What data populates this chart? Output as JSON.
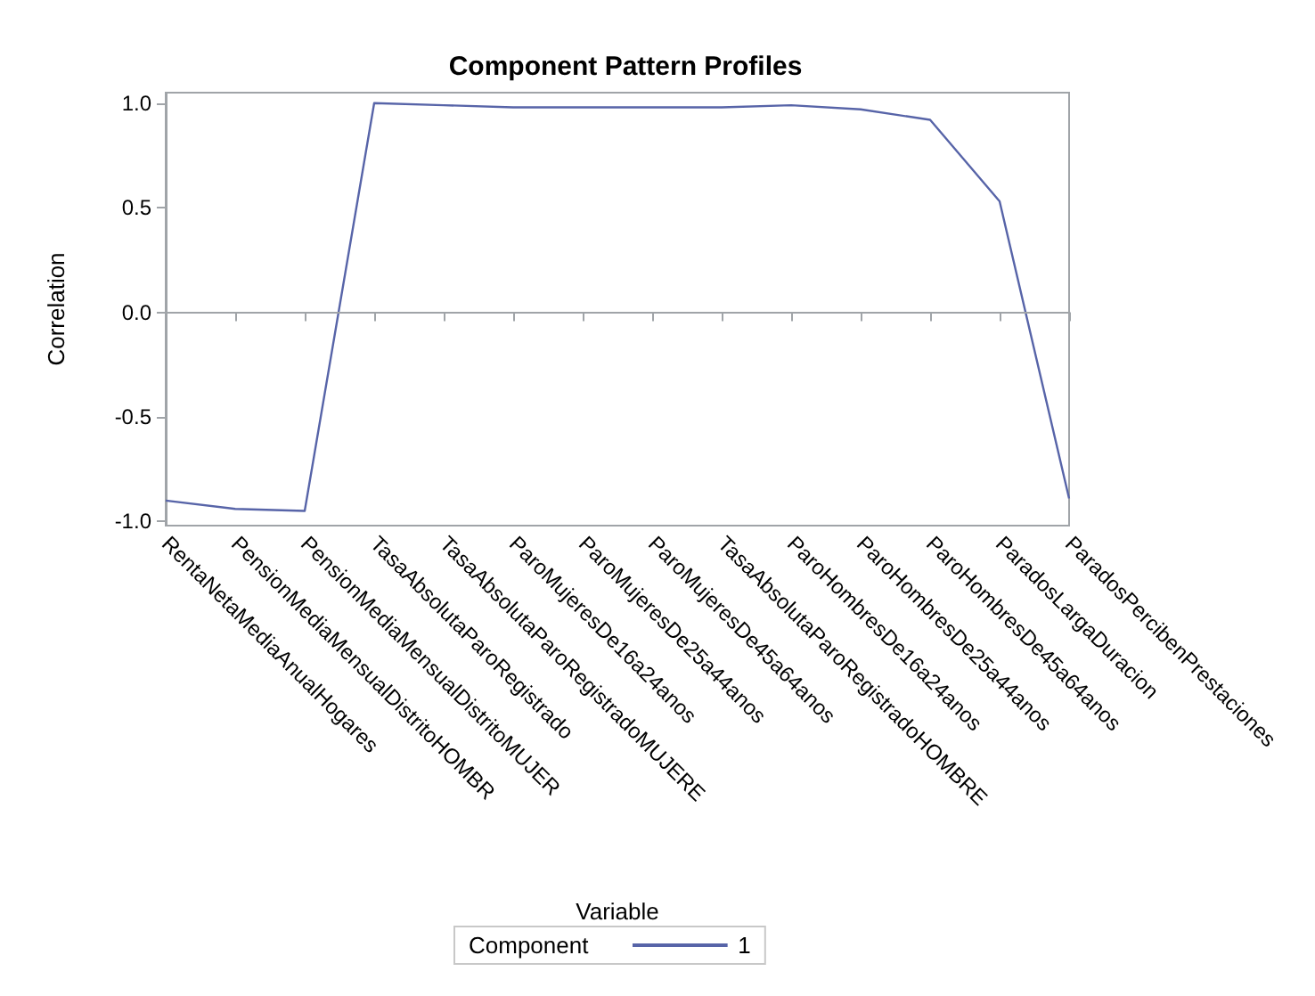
{
  "chart_data": {
    "type": "line",
    "title": "Component Pattern Profiles",
    "xlabel": "Variable",
    "ylabel": "Correlation",
    "legend_title": "Component",
    "categories": [
      "RentaNetaMediaAnualHogares",
      "PensionMediaMensualDistritoHOMBR",
      "PensionMediaMensualDistritoMUJER",
      "TasaAbsolutaParoRegistrado",
      "TasaAbsolutaParoRegistradoMUJERE",
      "ParoMujeresDe16a24anos",
      "ParoMujeresDe25a44anos",
      "ParoMujeresDe45a64anos",
      "TasaAbsolutaParoRegistradoHOMBRE",
      "ParoHombresDe16a24anos",
      "ParoHombresDe25a44anos",
      "ParoHombresDe45a64anos",
      "ParadosLargaDuracion",
      "ParadosPercibenPrestaciones"
    ],
    "series": [
      {
        "name": "1",
        "color": "#5764a8",
        "values": [
          -0.9,
          -0.94,
          -0.95,
          1.0,
          0.99,
          0.98,
          0.98,
          0.98,
          0.98,
          0.99,
          0.97,
          0.92,
          0.53,
          -0.89
        ]
      }
    ],
    "ylim": [
      -1.02,
      1.05
    ],
    "yticks": [
      {
        "value": -1,
        "label": "-1.0"
      },
      {
        "value": -0.5,
        "label": "-0.5"
      },
      {
        "value": 0,
        "label": "0.0"
      },
      {
        "value": 0.5,
        "label": "0.5"
      },
      {
        "value": 1,
        "label": "1.0"
      }
    ],
    "ref_lines": [
      {
        "axis": "y",
        "value": 0,
        "label": null,
        "color": "#a0a4a8"
      }
    ],
    "grid": false,
    "legend": "bottom",
    "marker": "none",
    "line_style": "solid"
  }
}
